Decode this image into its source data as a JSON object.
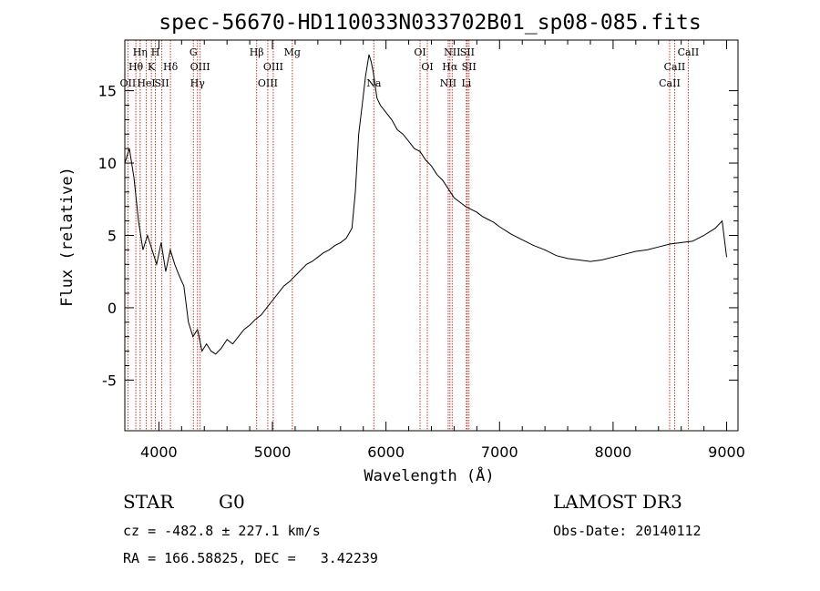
{
  "chart_data": {
    "type": "line",
    "title": "spec-56670-HD110033N033702B01_sp08-085.fits",
    "xlabel": "Wavelength (Å)",
    "ylabel": "Flux (relative)",
    "xlim": [
      3700,
      9100
    ],
    "ylim": [
      -8.5,
      18.5
    ],
    "xticks": [
      4000,
      5000,
      6000,
      7000,
      8000,
      9000
    ],
    "yticks": [
      -5,
      0,
      5,
      10,
      15
    ],
    "x": [
      3700,
      3740,
      3780,
      3820,
      3860,
      3900,
      3940,
      3980,
      4020,
      4060,
      4100,
      4140,
      4180,
      4220,
      4260,
      4300,
      4340,
      4380,
      4420,
      4460,
      4500,
      4550,
      4600,
      4650,
      4700,
      4750,
      4800,
      4850,
      4900,
      4950,
      5000,
      5050,
      5100,
      5150,
      5200,
      5250,
      5300,
      5350,
      5400,
      5450,
      5500,
      5550,
      5600,
      5650,
      5700,
      5730,
      5760,
      5790,
      5820,
      5850,
      5870,
      5890,
      5920,
      5950,
      6000,
      6050,
      6100,
      6150,
      6200,
      6250,
      6300,
      6350,
      6400,
      6450,
      6500,
      6550,
      6600,
      6650,
      6700,
      6750,
      6800,
      6850,
      6900,
      6950,
      7000,
      7100,
      7200,
      7300,
      7400,
      7500,
      7600,
      7700,
      7800,
      7900,
      8000,
      8100,
      8200,
      8300,
      8400,
      8500,
      8600,
      8700,
      8800,
      8900,
      8960,
      9000
    ],
    "y": [
      10,
      11,
      9,
      6,
      4,
      5,
      4,
      3,
      4.5,
      2.5,
      4,
      3,
      2.2,
      1.5,
      -1,
      -2,
      -1.5,
      -3,
      -2.5,
      -3,
      -3.2,
      -2.8,
      -2.2,
      -2.5,
      -2,
      -1.5,
      -1.2,
      -0.8,
      -0.5,
      0,
      0.5,
      1,
      1.5,
      1.8,
      2.2,
      2.6,
      3,
      3.2,
      3.5,
      3.8,
      4,
      4.3,
      4.5,
      4.8,
      5.5,
      8,
      12,
      14,
      16,
      17.5,
      17,
      16.2,
      14.5,
      14,
      13.5,
      13,
      12.3,
      12,
      11.5,
      11,
      10.8,
      10.2,
      9.8,
      9.2,
      8.8,
      8.2,
      7.6,
      7.3,
      7,
      6.8,
      6.6,
      6.3,
      6.1,
      5.9,
      5.6,
      5.1,
      4.7,
      4.3,
      4,
      3.6,
      3.4,
      3.3,
      3.2,
      3.3,
      3.5,
      3.7,
      3.9,
      4,
      4.2,
      4.4,
      4.5,
      4.6,
      5,
      5.5,
      6,
      3.5
    ]
  },
  "lines": [
    {
      "w": 3727,
      "label": "OII",
      "row": 3
    },
    {
      "w": 3797,
      "label": "Hθ",
      "row": 2
    },
    {
      "w": 3835,
      "label": "Hη",
      "row": 1
    },
    {
      "w": 3889,
      "label": "HeI",
      "row": 3
    },
    {
      "w": 3934,
      "label": "K",
      "row": 2
    },
    {
      "w": 3969,
      "label": "H",
      "row": 1
    },
    {
      "w": 4026,
      "label": "SII",
      "row": 3
    },
    {
      "w": 4102,
      "label": "Hδ",
      "row": 2
    },
    {
      "w": 4304,
      "label": "G",
      "row": 1
    },
    {
      "w": 4340,
      "label": "Hγ",
      "row": 3
    },
    {
      "w": 4363,
      "label": "OIII",
      "row": 2
    },
    {
      "w": 4861,
      "label": "Hβ",
      "row": 1
    },
    {
      "w": 4959,
      "label": "OIII",
      "row": 3
    },
    {
      "w": 5007,
      "label": "OIII",
      "row": 2
    },
    {
      "w": 5175,
      "label": "Mg",
      "row": 1
    },
    {
      "w": 5893,
      "label": "Na",
      "row": 3
    },
    {
      "w": 6300,
      "label": "OI",
      "row": 1
    },
    {
      "w": 6364,
      "label": "OI",
      "row": 2
    },
    {
      "w": 6548,
      "label": "NII",
      "row": 3
    },
    {
      "w": 6563,
      "label": "Hα",
      "row": 2
    },
    {
      "w": 6583,
      "label": "NII",
      "row": 1
    },
    {
      "w": 6708,
      "label": "Li",
      "row": 3
    },
    {
      "w": 6716,
      "label": "SII",
      "row": 1
    },
    {
      "w": 6731,
      "label": "SII",
      "row": 2
    },
    {
      "w": 8498,
      "label": "CaII",
      "row": 3
    },
    {
      "w": 8542,
      "label": "CaII",
      "row": 2
    },
    {
      "w": 8662,
      "label": "CaII",
      "row": 1
    }
  ],
  "info": {
    "class": "STAR",
    "subclass": "G0",
    "survey": "LAMOST DR3",
    "cz": "cz = -482.8 ± 227.1 km/s",
    "obs_date": "Obs-Date: 20140112",
    "radec": "RA = 166.58825, DEC =   3.42239"
  }
}
